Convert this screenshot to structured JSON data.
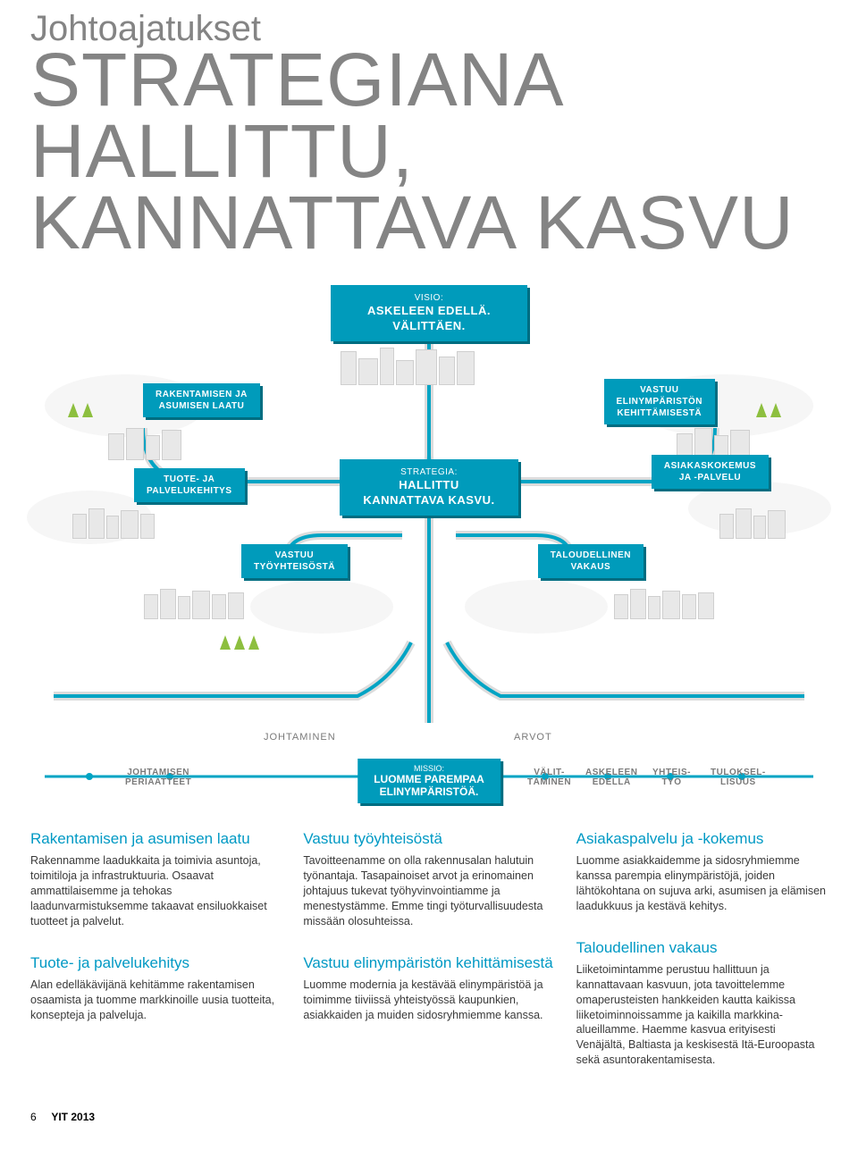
{
  "header": {
    "subtitle": "Johtoajatukset",
    "title_line1": "STRATEGIANA",
    "title_line2": "HALLITTU,",
    "title_line3": "KANNATTAVA KASVU"
  },
  "colors": {
    "box_bg": "#009bbb",
    "box_shadow": "#006d81",
    "road": "#00a4c4",
    "heading": "#0099c4",
    "text_grey": "#848484",
    "body_text": "#3a3a3a",
    "bg_grey": "#f0f0f0",
    "tree_green": "#8dbf3f"
  },
  "infographic": {
    "visio": {
      "label": "VISIO:",
      "line1": "ASKELEEN EDELLÄ.",
      "line2": "VÄLITTÄEN."
    },
    "strategia": {
      "label": "STRATEGIA:",
      "line1": "HALLITTU",
      "line2": "KANNATTAVA KASVU."
    },
    "boxes": {
      "rakentamisen": "RAKENTAMISEN JA\nASUMISEN LAATU",
      "vastuu_elin": "VASTUU\nELINYMPÄRISTÖN\nKEHITTÄMISESTÄ",
      "tuote": "TUOTE- JA\nPALVELUKEHITYS",
      "asiakas": "ASIAKASKOKEMUS\nJA -PALVELU",
      "vastuu_tyo": "VASTUU\nTYÖYHTEISÖSTÄ",
      "taloudellinen": "TALOUDELLINEN\nVAKAUS"
    }
  },
  "flow": {
    "johtaminen": "JOHTAMINEN",
    "arvot": "ARVOT",
    "johtamisen": "JOHTAMISEN\nPERIAATTEET",
    "missio": {
      "label": "MISSIO:",
      "line1": "LUOMME PAREMPAA",
      "line2": "ELINYMPÄRISTÖÄ."
    },
    "valit": "VÄLIT-\nTÄMINEN",
    "askeleen": "ASKELEEN\nEDELLÄ",
    "yhteis": "YHTEIS-\nTYÖ",
    "tuloksel": "TULOKSEL-\nLISUUS"
  },
  "content": {
    "col1": [
      {
        "h": "Rakentamisen ja asumisen laatu",
        "p": "Rakennamme laadukkaita ja toimivia asuntoja, toimitiloja ja infrastruktuuria. Osaavat ammattilaisemme ja tehokas laadunvarmistuksemme takaavat ensiluokkaiset tuotteet ja palvelut."
      },
      {
        "h": "Tuote- ja palvelukehitys",
        "p": "Alan edelläkävijänä kehitämme rakentamisen osaamista ja tuomme markkinoille uusia tuotteita, konsepteja ja palveluja."
      }
    ],
    "col2": [
      {
        "h": "Vastuu työyhteisöstä",
        "p": "Tavoitteenamme on olla rakennusalan halutuin työnantaja. Tasapainoiset arvot ja erinomainen johtajuus tukevat työhyvinvointiamme ja menestystämme. Emme tingi työturvallisuudesta missään olosuhteissa."
      },
      {
        "h": "Vastuu elinympäristön kehittämisestä",
        "p": "Luomme modernia ja kestävää elinympäristöä ja toimimme tiiviissä yhteistyössä kaupunkien, asiakkaiden ja muiden sidosryhmiemme kanssa."
      }
    ],
    "col3": [
      {
        "h": "Asiakaspalvelu ja -kokemus",
        "p": "Luomme asiakkaidemme ja sidosryhmiemme kanssa parempia elinympäristöjä, joiden lähtökohtana on sujuva arki, asumisen ja elämisen laadukkuus ja kestävä kehitys."
      },
      {
        "h": "Taloudellinen vakaus",
        "p": "Liiketoimintamme perustuu hallittuun ja kannattavaan kasvuun, jota tavoittelemme omaperusteisten hankkeiden kautta kaikissa liiketoiminnoissamme ja kaikilla markkina-alueillamme. Haemme kasvua erityisesti Venäjältä, Baltiasta ja keskisestä Itä-Euroopasta sekä asuntorakentamisesta."
      }
    ]
  },
  "footer": {
    "page": "6",
    "title": "YIT 2013"
  }
}
